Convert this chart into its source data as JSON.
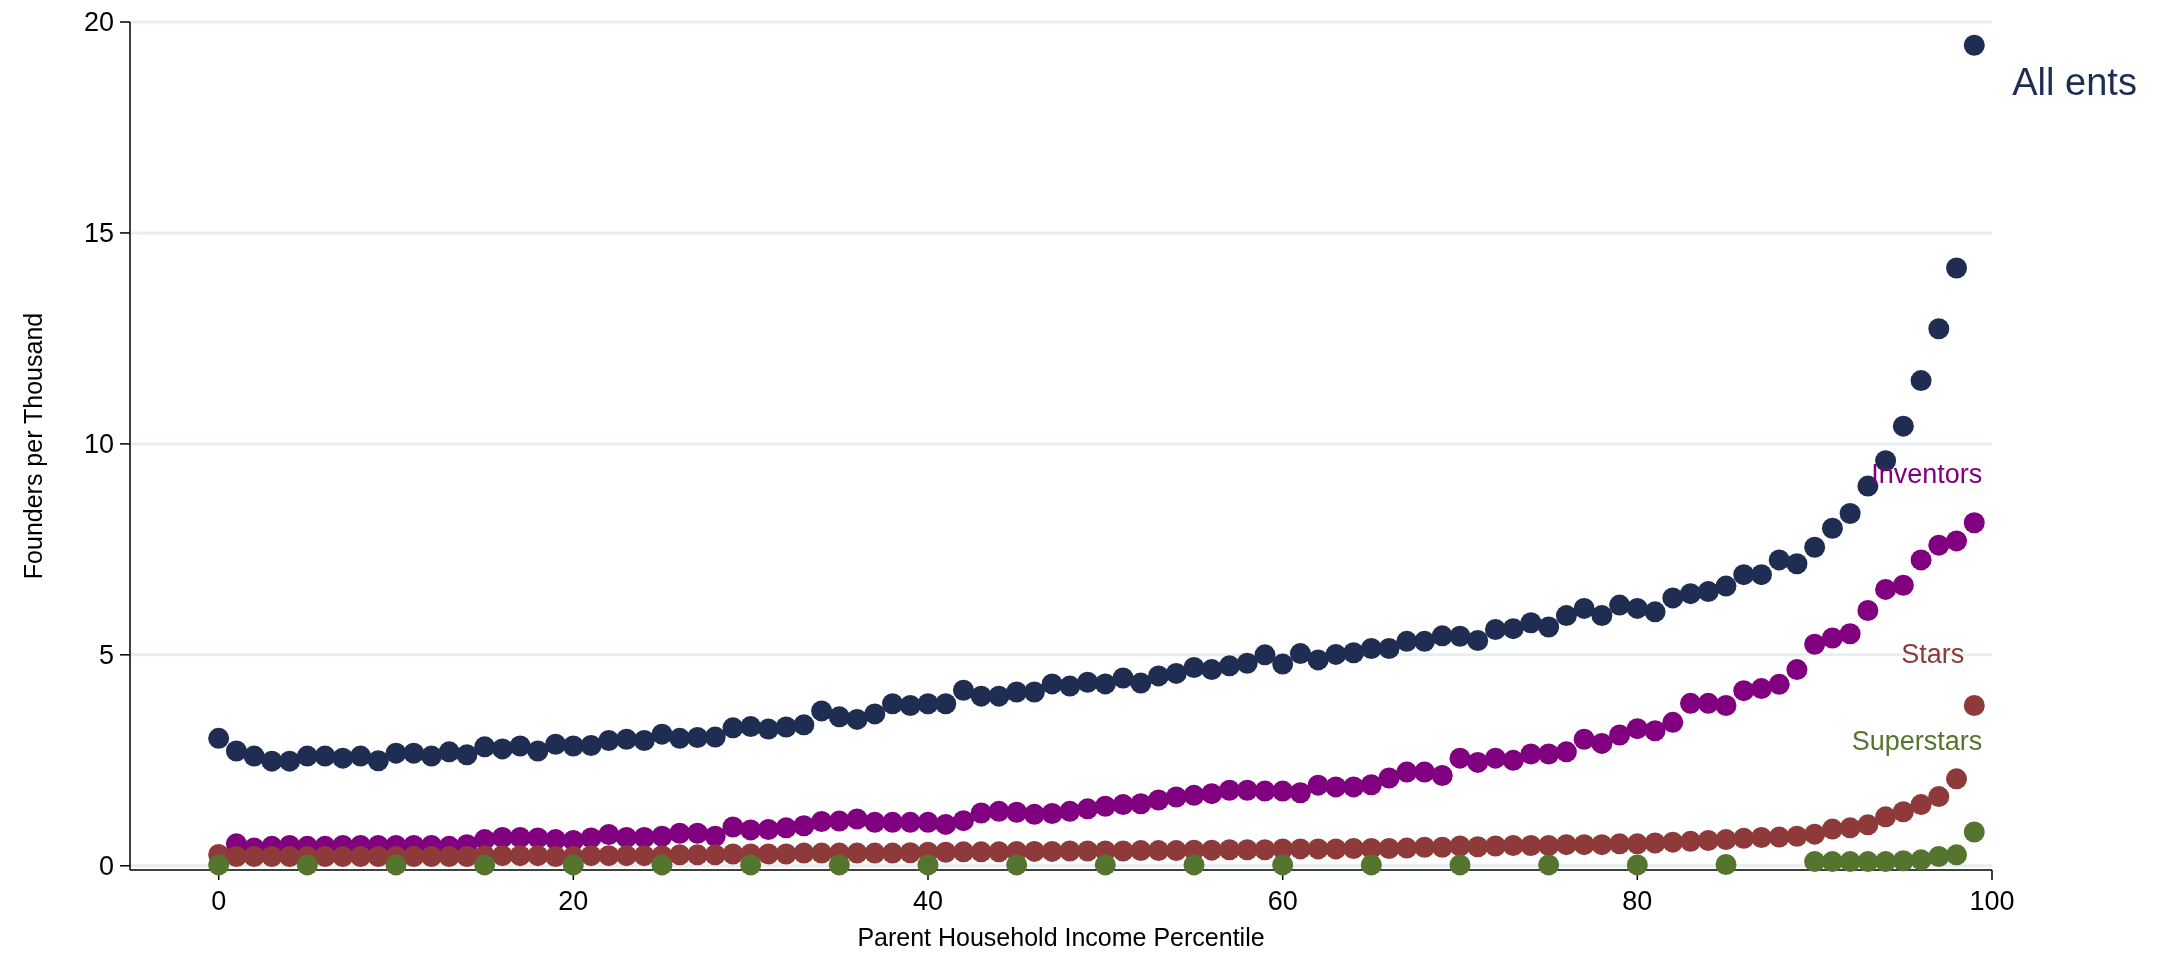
{
  "chart_data": {
    "type": "scatter",
    "xlabel": "Parent Household Income Percentile",
    "ylabel": "Founders per Thousand",
    "xlim": [
      -5,
      100
    ],
    "xticks": [
      0,
      20,
      40,
      60,
      80,
      100
    ],
    "ylim": [
      -0.1,
      20
    ],
    "yticks": [
      0,
      5,
      10,
      15,
      20
    ],
    "grid": "y",
    "marker": "circle",
    "x": [
      0,
      1,
      2,
      3,
      4,
      5,
      6,
      7,
      8,
      9,
      10,
      11,
      12,
      13,
      14,
      15,
      16,
      17,
      18,
      19,
      20,
      21,
      22,
      23,
      24,
      25,
      26,
      27,
      28,
      29,
      30,
      31,
      32,
      33,
      34,
      35,
      36,
      37,
      38,
      39,
      40,
      41,
      42,
      43,
      44,
      45,
      46,
      47,
      48,
      49,
      50,
      51,
      52,
      53,
      54,
      55,
      56,
      57,
      58,
      59,
      60,
      61,
      62,
      63,
      64,
      65,
      66,
      67,
      68,
      69,
      70,
      71,
      72,
      73,
      74,
      75,
      76,
      77,
      78,
      79,
      80,
      81,
      82,
      83,
      84,
      85,
      86,
      87,
      88,
      89,
      90,
      91,
      92,
      93,
      94,
      95,
      96,
      97,
      98,
      99
    ],
    "series": [
      {
        "name": "All ents",
        "color": "#1f2d52",
        "values": [
          3.02,
          2.72,
          2.6,
          2.48,
          2.48,
          2.6,
          2.6,
          2.55,
          2.6,
          2.49,
          2.67,
          2.67,
          2.6,
          2.7,
          2.63,
          2.82,
          2.77,
          2.84,
          2.72,
          2.88,
          2.84,
          2.85,
          2.97,
          3.0,
          2.97,
          3.12,
          3.02,
          3.04,
          3.05,
          3.27,
          3.3,
          3.24,
          3.29,
          3.34,
          3.67,
          3.53,
          3.47,
          3.6,
          3.84,
          3.8,
          3.84,
          3.84,
          4.16,
          4.02,
          4.02,
          4.12,
          4.12,
          4.31,
          4.26,
          4.35,
          4.31,
          4.45,
          4.33,
          4.5,
          4.56,
          4.7,
          4.65,
          4.74,
          4.8,
          5.0,
          4.78,
          5.03,
          4.88,
          5.01,
          5.05,
          5.15,
          5.15,
          5.32,
          5.32,
          5.45,
          5.44,
          5.34,
          5.6,
          5.62,
          5.76,
          5.66,
          5.93,
          6.1,
          5.93,
          6.18,
          6.1,
          6.02,
          6.35,
          6.45,
          6.5,
          6.63,
          6.9,
          6.9,
          7.25,
          7.16,
          7.55,
          8.0,
          8.35,
          9.0,
          9.6,
          10.42,
          11.5,
          12.73,
          14.17,
          19.45
        ]
      },
      {
        "name": "Inventors",
        "color": "#800080",
        "values": [
          null,
          0.52,
          0.42,
          0.46,
          0.48,
          0.46,
          0.46,
          0.48,
          0.48,
          0.48,
          0.48,
          0.48,
          0.48,
          0.46,
          0.5,
          0.62,
          0.67,
          0.67,
          0.66,
          0.62,
          0.6,
          0.66,
          0.74,
          0.67,
          0.67,
          0.7,
          0.77,
          0.77,
          0.7,
          0.92,
          0.85,
          0.86,
          0.9,
          0.95,
          1.05,
          1.06,
          1.11,
          1.03,
          1.03,
          1.03,
          1.03,
          0.98,
          1.07,
          1.25,
          1.29,
          1.27,
          1.22,
          1.24,
          1.29,
          1.35,
          1.41,
          1.45,
          1.47,
          1.56,
          1.63,
          1.67,
          1.71,
          1.79,
          1.79,
          1.77,
          1.77,
          1.73,
          1.91,
          1.87,
          1.87,
          1.92,
          2.08,
          2.22,
          2.22,
          2.14,
          2.55,
          2.45,
          2.55,
          2.5,
          2.65,
          2.65,
          2.7,
          3.0,
          2.9,
          3.1,
          3.25,
          3.2,
          3.4,
          3.85,
          3.85,
          3.8,
          4.15,
          4.2,
          4.3,
          4.65,
          5.25,
          5.4,
          5.5,
          6.05,
          6.55,
          6.65,
          7.25,
          7.6,
          7.7,
          8.13
        ]
      },
      {
        "name": "Stars",
        "color": "#8e3a3a",
        "values": [
          0.27,
          0.22,
          0.22,
          0.22,
          0.22,
          0.22,
          0.22,
          0.22,
          0.22,
          0.22,
          0.22,
          0.22,
          0.22,
          0.22,
          0.22,
          0.24,
          0.24,
          0.24,
          0.24,
          0.22,
          0.22,
          0.24,
          0.24,
          0.24,
          0.24,
          0.24,
          0.26,
          0.26,
          0.26,
          0.28,
          0.28,
          0.28,
          0.28,
          0.3,
          0.3,
          0.3,
          0.3,
          0.3,
          0.3,
          0.31,
          0.32,
          0.32,
          0.33,
          0.33,
          0.33,
          0.34,
          0.34,
          0.34,
          0.35,
          0.35,
          0.35,
          0.35,
          0.36,
          0.36,
          0.36,
          0.37,
          0.37,
          0.38,
          0.38,
          0.38,
          0.4,
          0.4,
          0.4,
          0.4,
          0.41,
          0.41,
          0.41,
          0.42,
          0.44,
          0.44,
          0.47,
          0.45,
          0.47,
          0.48,
          0.48,
          0.48,
          0.5,
          0.5,
          0.5,
          0.52,
          0.52,
          0.54,
          0.56,
          0.58,
          0.6,
          0.62,
          0.65,
          0.67,
          0.68,
          0.7,
          0.75,
          0.87,
          0.9,
          0.97,
          1.16,
          1.28,
          1.45,
          1.64,
          2.06,
          3.8
        ]
      },
      {
        "name": "Superstars",
        "color": "#55752f",
        "x": [
          0,
          5,
          10,
          15,
          20,
          25,
          30,
          35,
          40,
          45,
          50,
          55,
          60,
          65,
          70,
          75,
          80,
          85,
          90,
          91,
          92,
          93,
          94,
          95,
          96,
          97,
          98,
          99
        ],
        "values": [
          0.02,
          0.02,
          0.02,
          0.02,
          0.02,
          0.02,
          0.02,
          0.02,
          0.02,
          0.02,
          0.02,
          0.02,
          0.02,
          0.02,
          0.02,
          0.02,
          0.02,
          0.03,
          0.1,
          0.1,
          0.1,
          0.1,
          0.1,
          0.12,
          0.14,
          0.22,
          0.26,
          0.8
        ]
      }
    ]
  }
}
